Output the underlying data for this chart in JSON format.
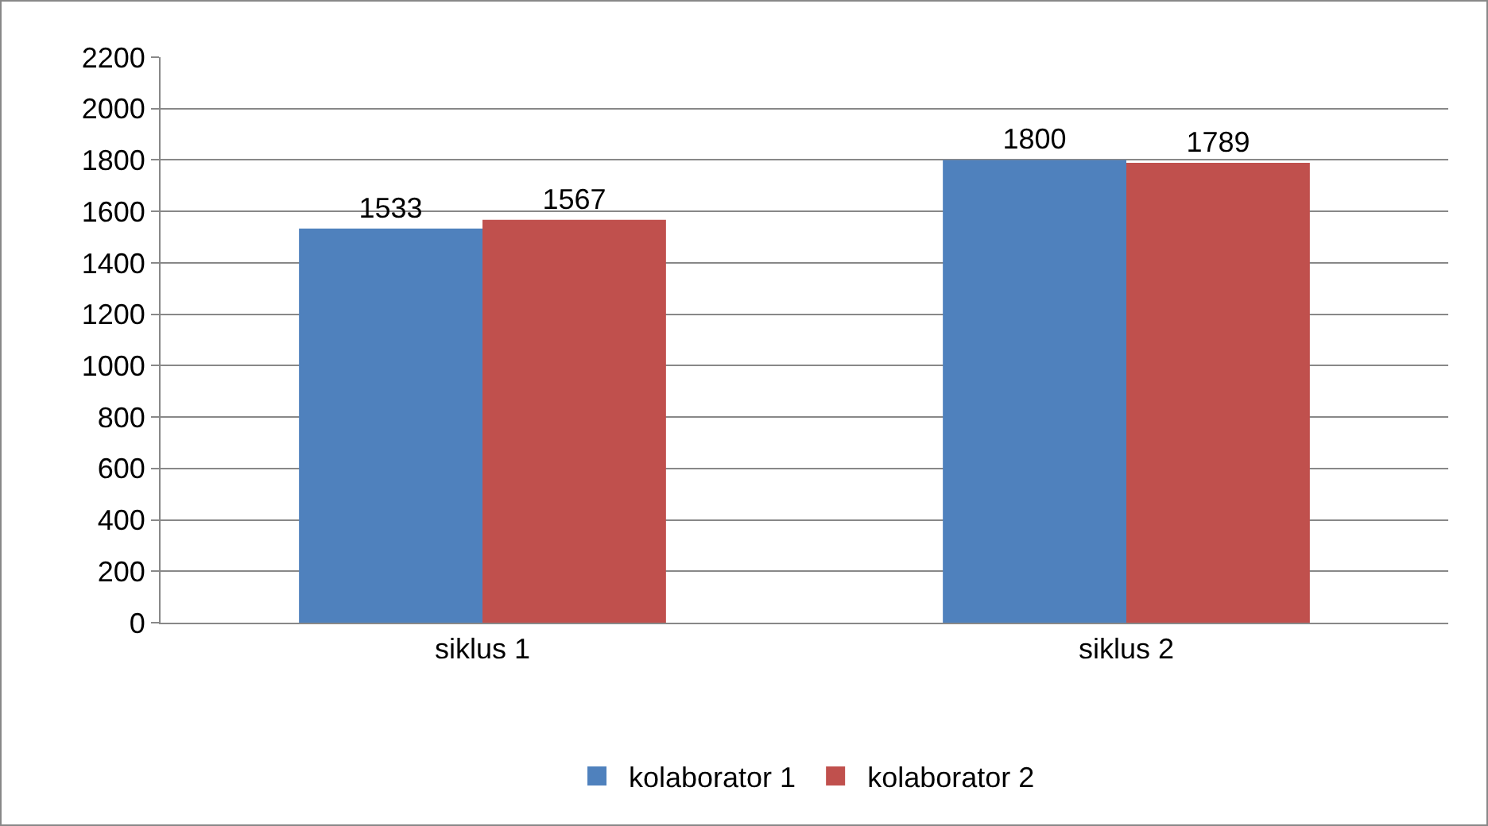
{
  "chart_data": {
    "type": "bar",
    "categories": [
      "siklus 1",
      "siklus 2"
    ],
    "series": [
      {
        "name": "kolaborator 1",
        "color": "#4f81bd",
        "values": [
          1533,
          1800
        ]
      },
      {
        "name": "kolaborator 2",
        "color": "#c0504d",
        "values": [
          1567,
          1789
        ]
      }
    ],
    "ylim": [
      0,
      2200
    ],
    "yticks": [
      0,
      200,
      400,
      600,
      800,
      1000,
      1200,
      1400,
      1600,
      1800,
      2000,
      2200
    ],
    "grid": "y",
    "legend": "bottom",
    "data_labels": true
  }
}
